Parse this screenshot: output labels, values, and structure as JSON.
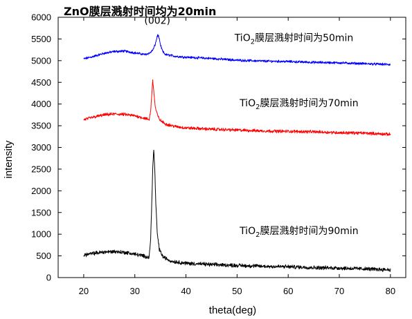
{
  "chart_data": {
    "type": "line",
    "title": "ZnO膜层溅射时间均为20min",
    "xlabel": "theta(deg)",
    "ylabel": "intensity",
    "xlim": [
      15,
      83
    ],
    "ylim": [
      0,
      6000
    ],
    "xticks": [
      20,
      30,
      40,
      50,
      60,
      70,
      80
    ],
    "yticks": [
      0,
      500,
      1000,
      1500,
      2000,
      2500,
      3000,
      3500,
      4000,
      4500,
      5000,
      5500,
      6000
    ],
    "grid": false,
    "legend": "none",
    "peak_label": {
      "text": "(002)",
      "x": 34.4,
      "y": 5850
    },
    "series": [
      {
        "label_prefix": "TiO",
        "label_sub": "2",
        "label_suffix": "膜层溅射时间为50min",
        "label_pos": {
          "x": 49.5,
          "y": 5450
        },
        "color": "#0000ff",
        "noise": 22,
        "points": [
          [
            20,
            5040
          ],
          [
            22,
            5100
          ],
          [
            24,
            5170
          ],
          [
            26,
            5210
          ],
          [
            28,
            5220
          ],
          [
            30,
            5180
          ],
          [
            32,
            5140
          ],
          [
            33,
            5180
          ],
          [
            33.6,
            5260
          ],
          [
            34.0,
            5380
          ],
          [
            34.3,
            5520
          ],
          [
            34.5,
            5600
          ],
          [
            34.7,
            5540
          ],
          [
            35.0,
            5360
          ],
          [
            35.5,
            5200
          ],
          [
            36,
            5140
          ],
          [
            38,
            5100
          ],
          [
            40,
            5080
          ],
          [
            45,
            5050
          ],
          [
            50,
            5010
          ],
          [
            55,
            4990
          ],
          [
            60,
            4980
          ],
          [
            65,
            4960
          ],
          [
            70,
            4950
          ],
          [
            75,
            4930
          ],
          [
            80,
            4910
          ]
        ]
      },
      {
        "label_prefix": "TiO",
        "label_sub": "2",
        "label_suffix": "膜层溅射时间为70min",
        "label_pos": {
          "x": 50.5,
          "y": 3950
        },
        "color": "#ff0000",
        "noise": 28,
        "points": [
          [
            20,
            3640
          ],
          [
            22,
            3700
          ],
          [
            24,
            3750
          ],
          [
            26,
            3770
          ],
          [
            28,
            3760
          ],
          [
            30,
            3730
          ],
          [
            32,
            3670
          ],
          [
            32.8,
            3640
          ],
          [
            33.1,
            3850
          ],
          [
            33.3,
            4200
          ],
          [
            33.5,
            4540
          ],
          [
            33.7,
            4300
          ],
          [
            34.0,
            3920
          ],
          [
            34.5,
            3720
          ],
          [
            35,
            3620
          ],
          [
            36,
            3540
          ],
          [
            38,
            3480
          ],
          [
            40,
            3450
          ],
          [
            45,
            3420
          ],
          [
            50,
            3400
          ],
          [
            55,
            3380
          ],
          [
            60,
            3370
          ],
          [
            65,
            3360
          ],
          [
            70,
            3340
          ],
          [
            75,
            3330
          ],
          [
            80,
            3300
          ]
        ]
      },
      {
        "label_prefix": "TiO",
        "label_sub": "2",
        "label_suffix": "膜层溅射时间为90min",
        "label_pos": {
          "x": 50.5,
          "y": 1000
        },
        "color": "#000000",
        "noise": 35,
        "points": [
          [
            20,
            520
          ],
          [
            22,
            560
          ],
          [
            24,
            590
          ],
          [
            26,
            600
          ],
          [
            28,
            580
          ],
          [
            30,
            540
          ],
          [
            32,
            490
          ],
          [
            32.8,
            470
          ],
          [
            33.1,
            900
          ],
          [
            33.3,
            1700
          ],
          [
            33.5,
            2500
          ],
          [
            33.7,
            2950
          ],
          [
            33.9,
            2500
          ],
          [
            34.1,
            1700
          ],
          [
            34.4,
            1000
          ],
          [
            34.8,
            650
          ],
          [
            35.5,
            480
          ],
          [
            37,
            380
          ],
          [
            40,
            330
          ],
          [
            45,
            300
          ],
          [
            50,
            280
          ],
          [
            55,
            260
          ],
          [
            60,
            250
          ],
          [
            65,
            230
          ],
          [
            70,
            220
          ],
          [
            75,
            200
          ],
          [
            80,
            180
          ]
        ]
      }
    ]
  }
}
